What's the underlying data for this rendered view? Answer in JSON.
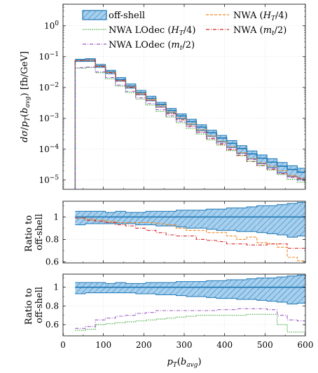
{
  "chart_data": {
    "type": "line",
    "x_edges": [
      30,
      55,
      80,
      105,
      130,
      155,
      180,
      205,
      230,
      255,
      280,
      305,
      330,
      355,
      380,
      405,
      430,
      455,
      480,
      505,
      530,
      555,
      580,
      600
    ],
    "xlabel": "p_T(b_avg)",
    "xlim": [
      0,
      600
    ],
    "x_ticks": [
      "0",
      "100",
      "200",
      "300",
      "400",
      "500",
      "600"
    ],
    "colors": {
      "off_shell": "#1f77b4",
      "off_shell_fill": "#a6cfee",
      "nwa_ht4": "#f08a24",
      "nwa_mt2": "#d62728",
      "nwa_lodec_ht4": "#2ca02c",
      "nwa_lodec_mt2": "#9b59c6"
    },
    "legend": {
      "off_shell": "off-shell",
      "nwa_ht4": "NWA (H_T/4)",
      "nwa_lodec_ht4": "NWA LOdec (H_T/4)",
      "nwa_mt2": "NWA (m_t/2)",
      "nwa_lodec_mt2": "NWA LOdec (m_t/2)"
    },
    "panels": [
      {
        "id": "main",
        "ylabel": "dσ/p_T(b_avg) [fb/GeV]",
        "yscale": "log",
        "ylim": [
          5e-06,
          5
        ],
        "y_ticks": [
          "10^-5",
          "10^-4",
          "10^-3",
          "10^-2",
          "10^-1",
          "10^0"
        ],
        "series": [
          {
            "key": "off_shell",
            "values": [
              0.075,
              0.078,
              0.05,
              0.032,
              0.018,
              0.011,
              0.0068,
              0.0044,
              0.0028,
              0.0018,
              0.0012,
              0.00078,
              0.00052,
              0.00034,
              0.00023,
              0.000155,
              0.000105,
              7e-05,
              5.1e-05,
              3.8e-05,
              2.8e-05,
              2.2e-05,
              1.8e-05
            ],
            "band_low": [
              0.07,
              0.07,
              0.045,
              0.028,
              0.016,
              0.0095,
              0.0058,
              0.0037,
              0.0023,
              0.0015,
              0.00096,
              0.00062,
              0.0004,
              0.00026,
              0.00017,
              0.000113,
              7.5e-05,
              4.9e-05,
              3.4e-05,
              2.5e-05,
              1.7e-05,
              1.3e-05,
              1.05e-05
            ],
            "band_high": [
              0.082,
              0.086,
              0.056,
              0.036,
              0.021,
              0.013,
              0.008,
              0.0052,
              0.0033,
              0.0021,
              0.0014,
              0.00093,
              0.00062,
              0.00041,
              0.00028,
              0.00019,
              0.00013,
              8.8e-05,
              6.5e-05,
              4.9e-05,
              3.7e-05,
              2.9e-05,
              2.4e-05
            ]
          },
          {
            "key": "nwa_ht4",
            "values": [
              0.074,
              0.077,
              0.049,
              0.031,
              0.017,
              0.0105,
              0.0064,
              0.0041,
              0.0026,
              0.0016,
              0.00104,
              0.00066,
              0.00043,
              0.00027,
              0.00018,
              0.00012,
              7.7e-05,
              5e-05,
              3.6e-05,
              2.8e-05,
              2e-05,
              1.4e-05,
              1.1e-05
            ]
          },
          {
            "key": "nwa_mt2",
            "values": [
              0.074,
              0.076,
              0.048,
              0.03,
              0.0165,
              0.0101,
              0.006,
              0.0038,
              0.0023,
              0.0014,
              0.0009,
              0.00056,
              0.00036,
              0.00022,
              0.000145,
              9.5e-05,
              6.3e-05,
              4e-05,
              2.9e-05,
              2.2e-05,
              1.6e-05,
              1.3e-05,
              1.15e-05
            ]
          },
          {
            "key": "nwa_lodec_ht4",
            "values": [
              0.042,
              0.044,
              0.03,
              0.019,
              0.011,
              0.0069,
              0.0042,
              0.0027,
              0.0017,
              0.0011,
              0.00072,
              0.00047,
              0.00031,
              0.0002,
              0.000135,
              9e-05,
              6.1e-05,
              4e-05,
              2.9e-05,
              2.1e-05,
              1.5e-05,
              1.05e-05,
              8.5e-06
            ]
          },
          {
            "key": "nwa_lodec_mt2",
            "values": [
              0.044,
              0.046,
              0.032,
              0.021,
              0.012,
              0.0075,
              0.0046,
              0.003,
              0.0019,
              0.00122,
              0.0008,
              0.00053,
              0.00035,
              0.00023,
              0.000155,
              0.000103,
              7e-05,
              4.6e-05,
              3.3e-05,
              2.4e-05,
              1.7e-05,
              1.2e-05,
              9.8e-06
            ]
          }
        ]
      },
      {
        "id": "ratio1",
        "ylabel": [
          "Ratio to",
          "off-shell"
        ],
        "ylim": [
          0.59,
          1.14
        ],
        "y_ticks": [
          "0.6",
          "0.8",
          "1"
        ],
        "series": [
          {
            "key": "off_shell",
            "values": [
              1,
              1,
              1,
              1,
              1,
              1,
              1,
              1,
              1,
              1,
              1,
              1,
              1,
              1,
              1,
              1,
              1,
              1,
              1,
              1,
              1,
              1,
              1
            ],
            "band_low": [
              0.93,
              0.94,
              0.94,
              0.94,
              0.94,
              0.94,
              0.93,
              0.93,
              0.92,
              0.92,
              0.91,
              0.9,
              0.9,
              0.89,
              0.88,
              0.88,
              0.87,
              0.87,
              0.86,
              0.85,
              0.84,
              0.82,
              0.83
            ],
            "band_high": [
              1.05,
              1.05,
              1.05,
              1.04,
              1.05,
              1.04,
              1.04,
              1.05,
              1.05,
              1.05,
              1.06,
              1.06,
              1.06,
              1.07,
              1.07,
              1.08,
              1.08,
              1.09,
              1.1,
              1.1,
              1.11,
              1.12,
              1.13
            ]
          },
          {
            "key": "nwa_ht4",
            "values": [
              0.99,
              0.98,
              0.97,
              0.96,
              0.95,
              0.95,
              0.95,
              0.95,
              0.94,
              0.93,
              0.9,
              0.88,
              0.88,
              0.86,
              0.86,
              0.83,
              0.8,
              0.82,
              0.77,
              0.76,
              0.73,
              0.64,
              0.61
            ]
          },
          {
            "key": "nwa_mt2",
            "values": [
              0.99,
              0.97,
              0.96,
              0.95,
              0.93,
              0.92,
              0.9,
              0.88,
              0.86,
              0.84,
              0.83,
              0.83,
              0.8,
              0.79,
              0.78,
              0.76,
              0.76,
              0.75,
              0.75,
              0.76,
              0.76,
              0.72,
              0.72
            ]
          }
        ]
      },
      {
        "id": "ratio2",
        "ylabel": [
          "Ratio to",
          "off-shell"
        ],
        "ylim": [
          0.48,
          1.14
        ],
        "y_ticks": [
          "0.6",
          "0.8",
          "1"
        ],
        "series": [
          {
            "key": "off_shell",
            "values": [
              1,
              1,
              1,
              1,
              1,
              1,
              1,
              1,
              1,
              1,
              1,
              1,
              1,
              1,
              1,
              1,
              1,
              1,
              1,
              1,
              1,
              1,
              1
            ],
            "band_low": [
              0.93,
              0.94,
              0.94,
              0.94,
              0.94,
              0.94,
              0.93,
              0.93,
              0.92,
              0.92,
              0.91,
              0.9,
              0.9,
              0.89,
              0.88,
              0.88,
              0.87,
              0.87,
              0.86,
              0.85,
              0.84,
              0.82,
              0.83
            ],
            "band_high": [
              1.05,
              1.05,
              1.05,
              1.04,
              1.05,
              1.04,
              1.04,
              1.05,
              1.05,
              1.05,
              1.06,
              1.06,
              1.06,
              1.07,
              1.07,
              1.08,
              1.08,
              1.09,
              1.1,
              1.1,
              1.11,
              1.12,
              1.13
            ]
          },
          {
            "key": "nwa_lodec_ht4",
            "values": [
              0.54,
              0.55,
              0.6,
              0.61,
              0.62,
              0.63,
              0.64,
              0.65,
              0.66,
              0.67,
              0.68,
              0.69,
              0.7,
              0.7,
              0.7,
              0.7,
              0.7,
              0.71,
              0.71,
              0.71,
              0.6,
              0.52,
              0.52
            ]
          },
          {
            "key": "nwa_lodec_mt2",
            "values": [
              0.56,
              0.58,
              0.65,
              0.67,
              0.69,
              0.7,
              0.72,
              0.73,
              0.75,
              0.75,
              0.75,
              0.75,
              0.75,
              0.75,
              0.76,
              0.76,
              0.77,
              0.77,
              0.77,
              0.76,
              0.7,
              0.65,
              0.64
            ]
          }
        ]
      }
    ]
  }
}
